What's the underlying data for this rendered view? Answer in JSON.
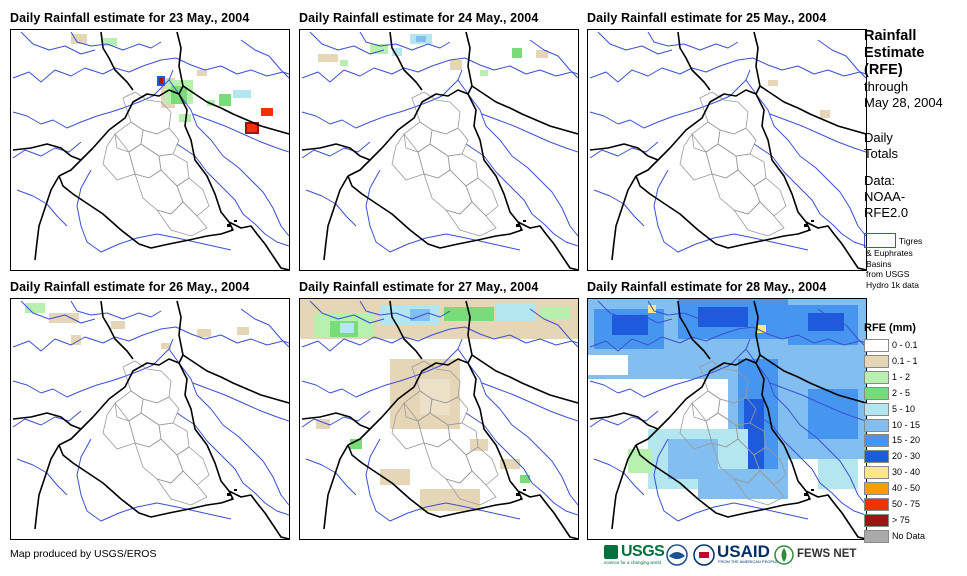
{
  "panels": [
    {
      "title": "Daily Rainfall estimate for 23 May., 2004"
    },
    {
      "title": "Daily Rainfall estimate for 24 May., 2004"
    },
    {
      "title": "Daily Rainfall estimate for 25 May., 2004"
    },
    {
      "title": "Daily Rainfall estimate for 26 May., 2004"
    },
    {
      "title": "Daily Rainfall estimate for 27 May., 2004"
    },
    {
      "title": "Daily Rainfall estimate for 28 May., 2004"
    }
  ],
  "side": {
    "title_line1": "Rainfall",
    "title_line2": "Estimate",
    "title_line3": "(RFE)",
    "through": "through",
    "date": "May 28, 2004",
    "daily": "Daily",
    "totals": "Totals",
    "data_label": "Data:",
    "data_source1": "NOAA-",
    "data_source2": "RFE2.0"
  },
  "basin_legend": {
    "line1": "Tigres",
    "line2": "& Euphrates",
    "line3": "Basins",
    "line4": "from USGS",
    "line5": "Hydro 1k data"
  },
  "legend": {
    "title": "RFE (mm)",
    "items": [
      {
        "label": "0 - 0.1",
        "color": "#ffffff"
      },
      {
        "label": "0.1 - 1",
        "color": "#e6d6b8"
      },
      {
        "label": "1 - 2",
        "color": "#b8f0b0"
      },
      {
        "label": "2 - 5",
        "color": "#78dc78"
      },
      {
        "label": "5 - 10",
        "color": "#b4e6f0"
      },
      {
        "label": "10 - 15",
        "color": "#82bef0"
      },
      {
        "label": "15 - 20",
        "color": "#4696f0"
      },
      {
        "label": "20 - 30",
        "color": "#1e5adc"
      },
      {
        "label": "30 - 40",
        "color": "#fae68c"
      },
      {
        "label": "40 - 50",
        "color": "#f5a000"
      },
      {
        "label": "50 - 75",
        "color": "#f03200"
      },
      {
        "label": "> 75",
        "color": "#a01414"
      },
      {
        "label": "No Data",
        "color": "#aaaaaa"
      }
    ]
  },
  "footer": {
    "credit": "Map produced by USGS/EROS",
    "logo_usgs": "USGS",
    "logo_usaid": "USAID",
    "logo_fews": "FEWS NET",
    "usgs_tagline": "science for a changing world",
    "usaid_tagline": "FROM THE AMERICAN PEOPLE"
  },
  "colors": {
    "border": "#000000",
    "river": "#3c50d2",
    "province": "#9a9a9a"
  }
}
